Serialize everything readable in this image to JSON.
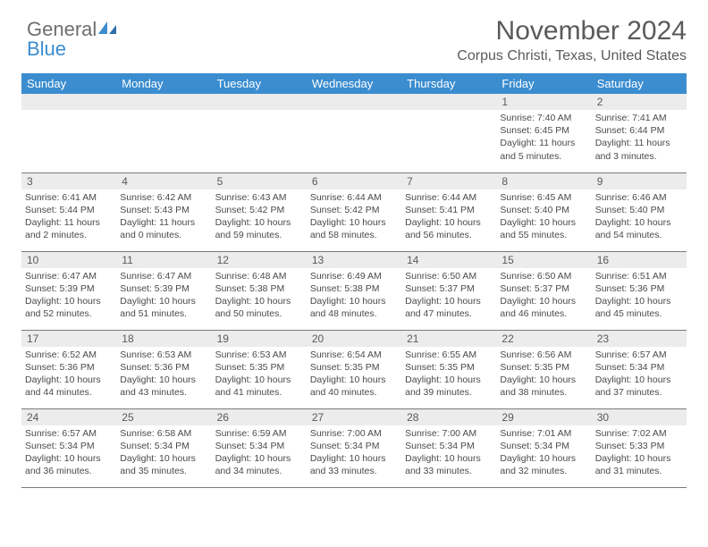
{
  "brand": {
    "word1": "General",
    "word2": "Blue",
    "word1_color": "#6e6e6e",
    "word2_color": "#3b8dd0",
    "icon_fill": "#3b8dd0"
  },
  "header": {
    "title": "November 2024",
    "location": "Corpus Christi, Texas, United States"
  },
  "styling": {
    "header_bg": "#3b8dd0",
    "header_text": "#ffffff",
    "daynum_bg": "#ececec",
    "cell_border": "#7a7a7a",
    "body_text": "#4a4a4a",
    "font_family": "Arial"
  },
  "dayNames": [
    "Sunday",
    "Monday",
    "Tuesday",
    "Wednesday",
    "Thursday",
    "Friday",
    "Saturday"
  ],
  "weeks": [
    [
      null,
      null,
      null,
      null,
      null,
      {
        "n": "1",
        "sunrise": "7:40 AM",
        "sunset": "6:45 PM",
        "daylight": "11 hours and 5 minutes."
      },
      {
        "n": "2",
        "sunrise": "7:41 AM",
        "sunset": "6:44 PM",
        "daylight": "11 hours and 3 minutes."
      }
    ],
    [
      {
        "n": "3",
        "sunrise": "6:41 AM",
        "sunset": "5:44 PM",
        "daylight": "11 hours and 2 minutes."
      },
      {
        "n": "4",
        "sunrise": "6:42 AM",
        "sunset": "5:43 PM",
        "daylight": "11 hours and 0 minutes."
      },
      {
        "n": "5",
        "sunrise": "6:43 AM",
        "sunset": "5:42 PM",
        "daylight": "10 hours and 59 minutes."
      },
      {
        "n": "6",
        "sunrise": "6:44 AM",
        "sunset": "5:42 PM",
        "daylight": "10 hours and 58 minutes."
      },
      {
        "n": "7",
        "sunrise": "6:44 AM",
        "sunset": "5:41 PM",
        "daylight": "10 hours and 56 minutes."
      },
      {
        "n": "8",
        "sunrise": "6:45 AM",
        "sunset": "5:40 PM",
        "daylight": "10 hours and 55 minutes."
      },
      {
        "n": "9",
        "sunrise": "6:46 AM",
        "sunset": "5:40 PM",
        "daylight": "10 hours and 54 minutes."
      }
    ],
    [
      {
        "n": "10",
        "sunrise": "6:47 AM",
        "sunset": "5:39 PM",
        "daylight": "10 hours and 52 minutes."
      },
      {
        "n": "11",
        "sunrise": "6:47 AM",
        "sunset": "5:39 PM",
        "daylight": "10 hours and 51 minutes."
      },
      {
        "n": "12",
        "sunrise": "6:48 AM",
        "sunset": "5:38 PM",
        "daylight": "10 hours and 50 minutes."
      },
      {
        "n": "13",
        "sunrise": "6:49 AM",
        "sunset": "5:38 PM",
        "daylight": "10 hours and 48 minutes."
      },
      {
        "n": "14",
        "sunrise": "6:50 AM",
        "sunset": "5:37 PM",
        "daylight": "10 hours and 47 minutes."
      },
      {
        "n": "15",
        "sunrise": "6:50 AM",
        "sunset": "5:37 PM",
        "daylight": "10 hours and 46 minutes."
      },
      {
        "n": "16",
        "sunrise": "6:51 AM",
        "sunset": "5:36 PM",
        "daylight": "10 hours and 45 minutes."
      }
    ],
    [
      {
        "n": "17",
        "sunrise": "6:52 AM",
        "sunset": "5:36 PM",
        "daylight": "10 hours and 44 minutes."
      },
      {
        "n": "18",
        "sunrise": "6:53 AM",
        "sunset": "5:36 PM",
        "daylight": "10 hours and 43 minutes."
      },
      {
        "n": "19",
        "sunrise": "6:53 AM",
        "sunset": "5:35 PM",
        "daylight": "10 hours and 41 minutes."
      },
      {
        "n": "20",
        "sunrise": "6:54 AM",
        "sunset": "5:35 PM",
        "daylight": "10 hours and 40 minutes."
      },
      {
        "n": "21",
        "sunrise": "6:55 AM",
        "sunset": "5:35 PM",
        "daylight": "10 hours and 39 minutes."
      },
      {
        "n": "22",
        "sunrise": "6:56 AM",
        "sunset": "5:35 PM",
        "daylight": "10 hours and 38 minutes."
      },
      {
        "n": "23",
        "sunrise": "6:57 AM",
        "sunset": "5:34 PM",
        "daylight": "10 hours and 37 minutes."
      }
    ],
    [
      {
        "n": "24",
        "sunrise": "6:57 AM",
        "sunset": "5:34 PM",
        "daylight": "10 hours and 36 minutes."
      },
      {
        "n": "25",
        "sunrise": "6:58 AM",
        "sunset": "5:34 PM",
        "daylight": "10 hours and 35 minutes."
      },
      {
        "n": "26",
        "sunrise": "6:59 AM",
        "sunset": "5:34 PM",
        "daylight": "10 hours and 34 minutes."
      },
      {
        "n": "27",
        "sunrise": "7:00 AM",
        "sunset": "5:34 PM",
        "daylight": "10 hours and 33 minutes."
      },
      {
        "n": "28",
        "sunrise": "7:00 AM",
        "sunset": "5:34 PM",
        "daylight": "10 hours and 33 minutes."
      },
      {
        "n": "29",
        "sunrise": "7:01 AM",
        "sunset": "5:34 PM",
        "daylight": "10 hours and 32 minutes."
      },
      {
        "n": "30",
        "sunrise": "7:02 AM",
        "sunset": "5:33 PM",
        "daylight": "10 hours and 31 minutes."
      }
    ]
  ],
  "labels": {
    "sunrise": "Sunrise: ",
    "sunset": "Sunset: ",
    "daylight": "Daylight: "
  }
}
